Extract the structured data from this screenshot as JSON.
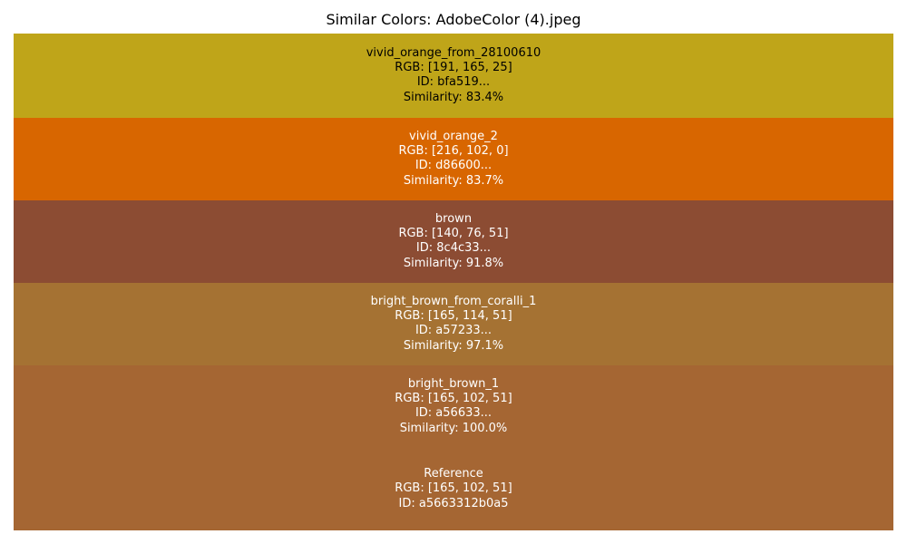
{
  "chart_data": {
    "type": "table",
    "title": "Similar Colors: AdobeColor (4).jpeg",
    "rows": [
      {
        "name": "vivid_orange_from_28100610",
        "rgb_label": "RGB: [191, 165, 25]",
        "id_label": "ID: bfa519...",
        "similarity_label": "Similarity: 83.4%",
        "rgb": [
          191,
          165,
          25
        ],
        "similarity": 83.4,
        "color": "#bfa519",
        "text_color": "#000000"
      },
      {
        "name": "vivid_orange_2",
        "rgb_label": "RGB: [216, 102, 0]",
        "id_label": "ID: d86600...",
        "similarity_label": "Similarity: 83.7%",
        "rgb": [
          216,
          102,
          0
        ],
        "similarity": 83.7,
        "color": "#d86600",
        "text_color": "#ffffff"
      },
      {
        "name": "brown",
        "rgb_label": "RGB: [140, 76, 51]",
        "id_label": "ID: 8c4c33...",
        "similarity_label": "Similarity: 91.8%",
        "rgb": [
          140,
          76,
          51
        ],
        "similarity": 91.8,
        "color": "#8c4c33",
        "text_color": "#ffffff"
      },
      {
        "name": "bright_brown_from_coralli_1",
        "rgb_label": "RGB: [165, 114, 51]",
        "id_label": "ID: a57233...",
        "similarity_label": "Similarity: 97.1%",
        "rgb": [
          165,
          114,
          51
        ],
        "similarity": 97.1,
        "color": "#a57233",
        "text_color": "#ffffff"
      },
      {
        "name": "bright_brown_1",
        "rgb_label": "RGB: [165, 102, 51]",
        "id_label": "ID: a56633...",
        "similarity_label": "Similarity: 100.0%",
        "rgb": [
          165,
          102,
          51
        ],
        "similarity": 100.0,
        "color": "#a56633",
        "text_color": "#ffffff"
      },
      {
        "name": "Reference",
        "rgb_label": "RGB: [165, 102, 51]",
        "id_label": "ID: a5663312b0a5",
        "similarity_label": "",
        "rgb": [
          165,
          102,
          51
        ],
        "color": "#a56633",
        "text_color": "#ffffff"
      }
    ]
  }
}
